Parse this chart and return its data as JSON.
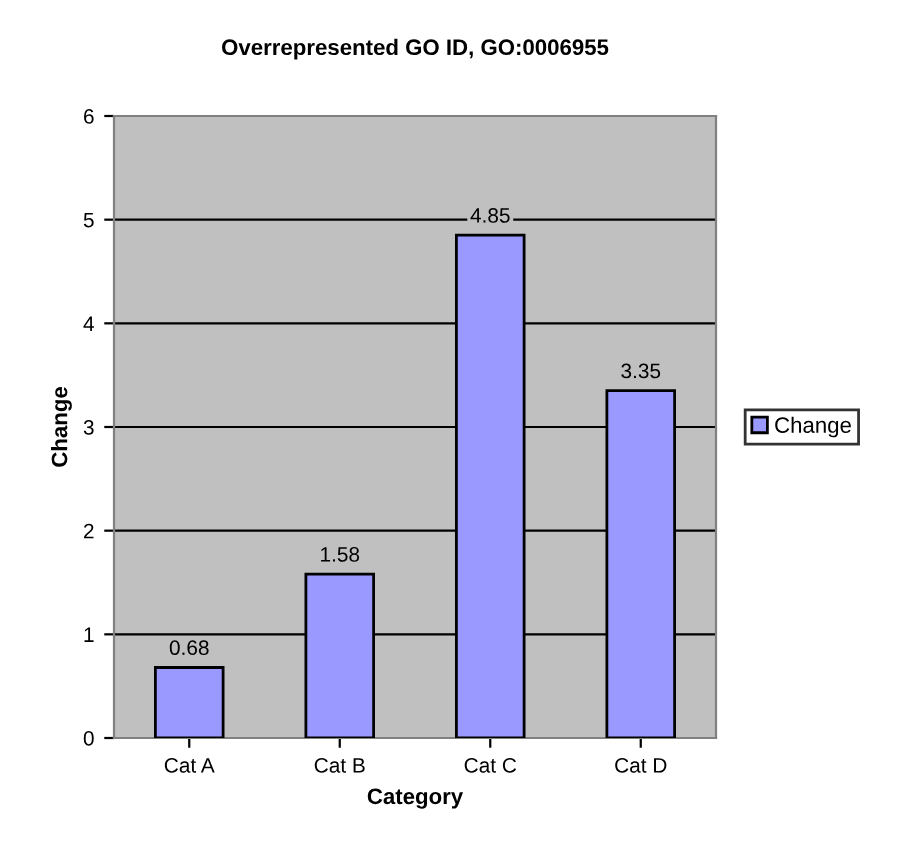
{
  "chart_data": {
    "type": "bar",
    "title": "Overrepresented GO ID, GO:0006955",
    "xlabel": "Category",
    "ylabel": "Change",
    "categories": [
      "Cat A",
      "Cat B",
      "Cat C",
      "Cat D"
    ],
    "series": [
      {
        "name": "Change",
        "color": "#9999ff",
        "values": [
          0.68,
          1.58,
          4.85,
          3.35
        ]
      }
    ],
    "ylim": [
      0,
      6
    ],
    "yticks": [
      0,
      1,
      2,
      3,
      4,
      5,
      6
    ],
    "grid": "y",
    "legend": "right",
    "data_labels": true
  }
}
